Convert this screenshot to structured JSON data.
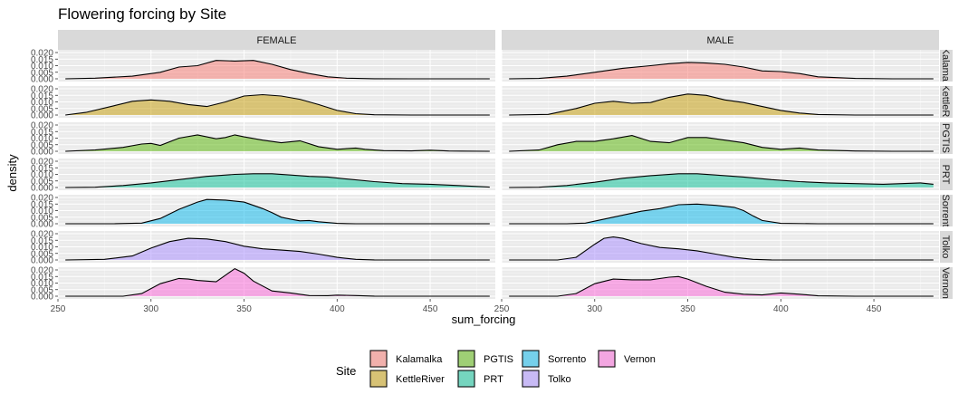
{
  "chart_data": {
    "type": "area",
    "title": "Flowering forcing by Site",
    "xlabel": "sum_forcing",
    "ylabel": "density",
    "xlim": [
      250,
      485
    ],
    "ylim": [
      0,
      0.02
    ],
    "x_ticks": [
      250,
      300,
      350,
      400,
      450
    ],
    "y_ticks": [
      0.0,
      0.005,
      0.01,
      0.015,
      0.02
    ],
    "y_tick_labels": [
      "0.000",
      "0.005",
      "0.010",
      "0.015",
      "0.020"
    ],
    "facet_columns": [
      "FEMALE",
      "MALE"
    ],
    "facet_rows": [
      "Kalamalka",
      "KettleRiver",
      "PGTIS",
      "PRT",
      "Sorrento",
      "Tolko",
      "Vernon"
    ],
    "row_strip_labels": [
      "Kalamal",
      "KettleRi",
      "PGTIS",
      "PRT",
      "Sorrent",
      "Tolko",
      "Vernon"
    ],
    "colors": {
      "Kalamalka": "#F8766D",
      "KettleRiver": "#C49A00",
      "PGTIS": "#53B400",
      "PRT": "#00C094",
      "Sorrento": "#00B6EB",
      "Tolko": "#A58AFF",
      "Vernon": "#FB61D7"
    },
    "grid": true,
    "legend": {
      "title": "Site",
      "position": "bottom",
      "columns": [
        [
          "Kalamalka",
          "KettleRiver"
        ],
        [
          "PGTIS",
          "PRT"
        ],
        [
          "Sorrento",
          "Tolko"
        ],
        [
          "Vernon"
        ]
      ]
    },
    "series": [
      {
        "site": "Kalamalka",
        "sex": "FEMALE",
        "x": [
          254,
          270,
          290,
          305,
          315,
          325,
          335,
          345,
          355,
          365,
          375,
          385,
          395,
          405,
          420,
          440,
          460,
          482
        ],
        "y": [
          0,
          0.0005,
          0.002,
          0.005,
          0.009,
          0.01,
          0.014,
          0.0135,
          0.014,
          0.011,
          0.007,
          0.004,
          0.0015,
          0.0005,
          0.0001,
          0,
          0,
          0
        ]
      },
      {
        "site": "Kalamalka",
        "sex": "MALE",
        "x": [
          254,
          270,
          285,
          300,
          315,
          330,
          340,
          350,
          360,
          370,
          380,
          390,
          400,
          410,
          420,
          440,
          460,
          482
        ],
        "y": [
          0,
          0.0003,
          0.002,
          0.005,
          0.008,
          0.01,
          0.0115,
          0.0125,
          0.012,
          0.011,
          0.009,
          0.006,
          0.0055,
          0.004,
          0.0015,
          0.0003,
          0,
          0
        ]
      },
      {
        "site": "KettleRiver",
        "sex": "FEMALE",
        "x": [
          254,
          265,
          280,
          290,
          300,
          310,
          320,
          330,
          340,
          350,
          360,
          370,
          380,
          390,
          400,
          410,
          420,
          440,
          460,
          482
        ],
        "y": [
          0,
          0.002,
          0.007,
          0.0105,
          0.0115,
          0.0105,
          0.008,
          0.0065,
          0.01,
          0.0145,
          0.0155,
          0.0145,
          0.012,
          0.008,
          0.0035,
          0.001,
          0.0002,
          0,
          0,
          0
        ]
      },
      {
        "site": "KettleRiver",
        "sex": "MALE",
        "x": [
          254,
          275,
          290,
          300,
          310,
          320,
          330,
          340,
          350,
          360,
          370,
          380,
          390,
          400,
          410,
          420,
          440,
          460,
          482
        ],
        "y": [
          0,
          0.0005,
          0.005,
          0.009,
          0.0105,
          0.009,
          0.0095,
          0.0135,
          0.016,
          0.015,
          0.0115,
          0.0095,
          0.0065,
          0.0035,
          0.0015,
          0.0004,
          0,
          0,
          0
        ]
      },
      {
        "site": "PGTIS",
        "sex": "FEMALE",
        "x": [
          254,
          270,
          285,
          295,
          300,
          305,
          315,
          325,
          335,
          340,
          345,
          350,
          360,
          370,
          380,
          390,
          400,
          410,
          415,
          425,
          440,
          450,
          460,
          482
        ],
        "y": [
          0,
          0.001,
          0.003,
          0.0055,
          0.006,
          0.0045,
          0.01,
          0.0125,
          0.0095,
          0.0105,
          0.0125,
          0.011,
          0.0085,
          0.0065,
          0.008,
          0.0035,
          0.0015,
          0.0025,
          0.0015,
          0.0005,
          0.0003,
          0.0008,
          0.0002,
          0
        ]
      },
      {
        "site": "PGTIS",
        "sex": "MALE",
        "x": [
          254,
          270,
          280,
          290,
          300,
          310,
          320,
          330,
          340,
          350,
          360,
          370,
          380,
          390,
          400,
          410,
          420,
          440,
          460,
          482
        ],
        "y": [
          0,
          0.001,
          0.005,
          0.0075,
          0.0075,
          0.0095,
          0.012,
          0.0075,
          0.0065,
          0.0105,
          0.0105,
          0.0085,
          0.0065,
          0.003,
          0.0015,
          0.0025,
          0.001,
          0.0002,
          0,
          0
        ]
      },
      {
        "site": "PRT",
        "sex": "FEMALE",
        "x": [
          254,
          270,
          285,
          300,
          315,
          330,
          345,
          355,
          365,
          375,
          385,
          395,
          405,
          420,
          435,
          450,
          465,
          482
        ],
        "y": [
          0,
          0.0002,
          0.0015,
          0.0035,
          0.006,
          0.0085,
          0.01,
          0.0105,
          0.0105,
          0.0095,
          0.0085,
          0.008,
          0.0065,
          0.0045,
          0.003,
          0.0025,
          0.0015,
          0.0003
        ]
      },
      {
        "site": "PRT",
        "sex": "MALE",
        "x": [
          254,
          270,
          285,
          300,
          315,
          330,
          345,
          355,
          365,
          380,
          395,
          410,
          425,
          440,
          455,
          465,
          475,
          482
        ],
        "y": [
          0,
          0.0002,
          0.0015,
          0.004,
          0.007,
          0.009,
          0.0105,
          0.0105,
          0.0095,
          0.008,
          0.006,
          0.0045,
          0.0035,
          0.003,
          0.0025,
          0.003,
          0.0035,
          0.0025
        ]
      },
      {
        "site": "Sorrento",
        "sex": "FEMALE",
        "x": [
          254,
          280,
          295,
          305,
          315,
          325,
          330,
          340,
          350,
          355,
          360,
          365,
          370,
          375,
          380,
          385,
          390,
          400,
          410,
          440,
          482
        ],
        "y": [
          0,
          0,
          0.0005,
          0.004,
          0.011,
          0.0165,
          0.0185,
          0.018,
          0.0165,
          0.014,
          0.0115,
          0.0085,
          0.005,
          0.0035,
          0.0022,
          0.0025,
          0.0015,
          0.0003,
          0,
          0,
          0
        ]
      },
      {
        "site": "Sorrento",
        "sex": "MALE",
        "x": [
          254,
          285,
          295,
          305,
          315,
          325,
          335,
          345,
          355,
          365,
          375,
          380,
          385,
          390,
          400,
          420,
          482
        ],
        "y": [
          0,
          0,
          0.0005,
          0.0035,
          0.0065,
          0.0095,
          0.0115,
          0.0145,
          0.015,
          0.014,
          0.0125,
          0.01,
          0.006,
          0.0025,
          0.0003,
          0,
          0
        ]
      },
      {
        "site": "Tolko",
        "sex": "FEMALE",
        "x": [
          254,
          275,
          290,
          300,
          310,
          320,
          330,
          340,
          350,
          360,
          370,
          380,
          390,
          400,
          410,
          420,
          440,
          482
        ],
        "y": [
          0,
          0.0005,
          0.003,
          0.009,
          0.014,
          0.0165,
          0.016,
          0.014,
          0.0105,
          0.0085,
          0.0075,
          0.0065,
          0.0045,
          0.002,
          0.0005,
          0.0001,
          0,
          0
        ]
      },
      {
        "site": "Tolko",
        "sex": "MALE",
        "x": [
          254,
          280,
          290,
          300,
          305,
          310,
          315,
          325,
          335,
          345,
          355,
          365,
          375,
          385,
          395,
          410,
          440,
          482
        ],
        "y": [
          0,
          0,
          0.002,
          0.012,
          0.0165,
          0.0175,
          0.0165,
          0.0125,
          0.0095,
          0.0085,
          0.007,
          0.0045,
          0.002,
          0.0005,
          0.0001,
          0,
          0,
          0
        ]
      },
      {
        "site": "Vernon",
        "sex": "FEMALE",
        "x": [
          254,
          285,
          295,
          305,
          315,
          320,
          325,
          335,
          340,
          345,
          350,
          355,
          365,
          375,
          385,
          395,
          400,
          410,
          420,
          440,
          482
        ],
        "y": [
          0,
          0,
          0.002,
          0.0095,
          0.0135,
          0.013,
          0.012,
          0.011,
          0.016,
          0.021,
          0.0175,
          0.0115,
          0.004,
          0.0025,
          0.0005,
          0.0004,
          0.0008,
          0.0005,
          0.0001,
          0,
          0
        ]
      },
      {
        "site": "Vernon",
        "sex": "MALE",
        "x": [
          254,
          280,
          290,
          300,
          310,
          320,
          330,
          340,
          345,
          350,
          360,
          370,
          380,
          390,
          400,
          410,
          420,
          440,
          482
        ],
        "y": [
          0,
          0,
          0.002,
          0.0095,
          0.013,
          0.0125,
          0.0125,
          0.0145,
          0.015,
          0.013,
          0.0075,
          0.003,
          0.0015,
          0.001,
          0.0025,
          0.0015,
          0.0003,
          0,
          0
        ]
      }
    ]
  }
}
